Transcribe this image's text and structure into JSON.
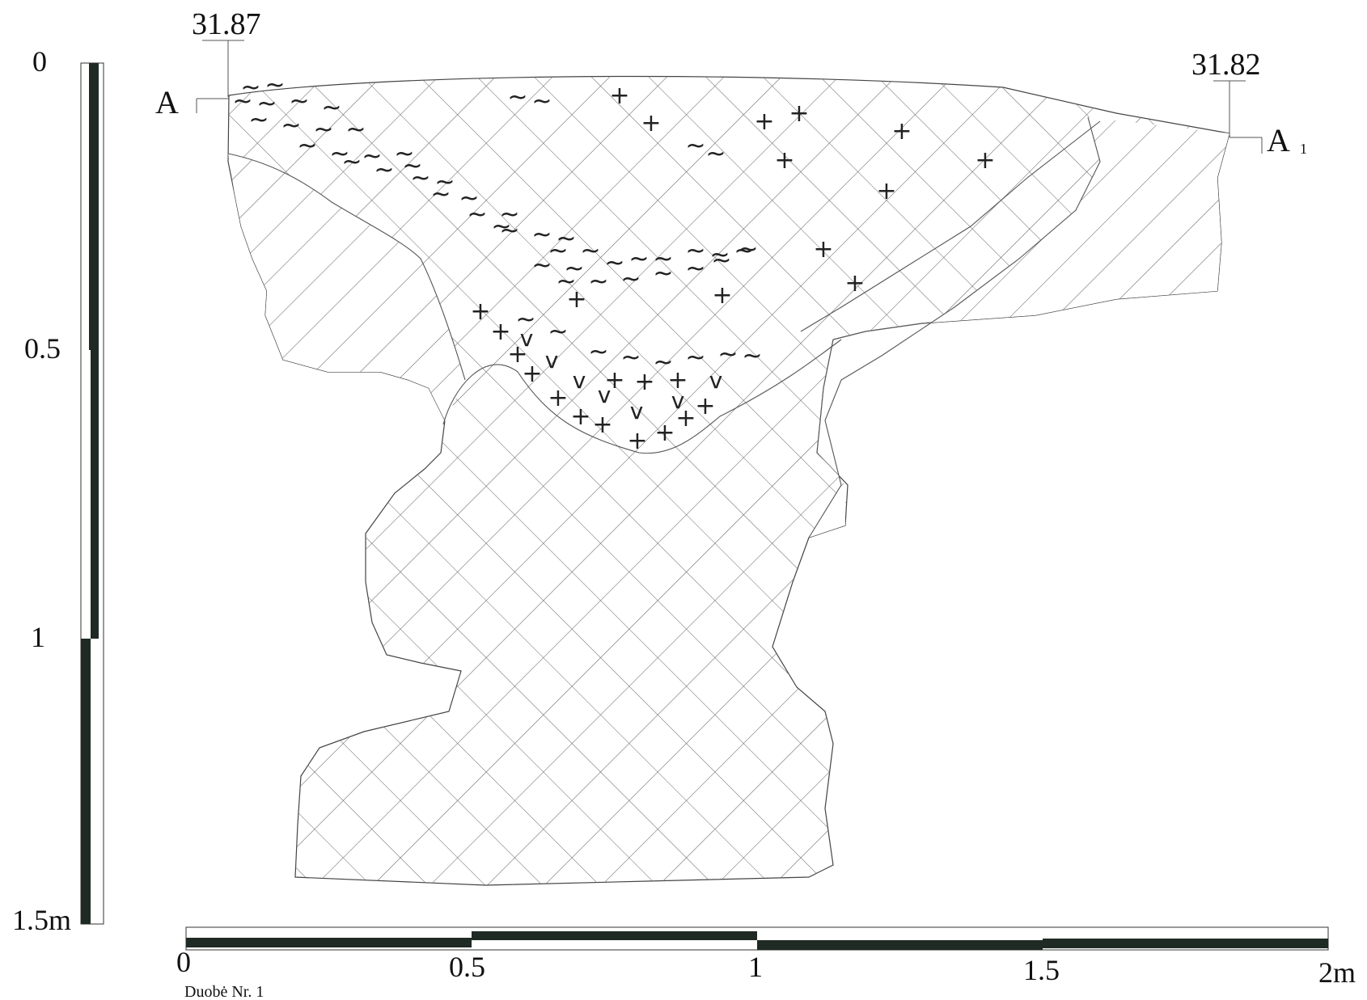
{
  "elevations": {
    "left": "31.87",
    "right": "31.82"
  },
  "section_labels": {
    "start": "A",
    "end": "A",
    "end_subscript": "1"
  },
  "vertical_scale": {
    "labels": [
      "0",
      "0.5",
      "1",
      "1.5m"
    ]
  },
  "horizontal_scale": {
    "labels": [
      "0",
      "0.5",
      "1",
      "1.5",
      "2m"
    ]
  },
  "caption": "Duobė Nr. 1",
  "legend_symbols": {
    "plus": "+",
    "wave": "~",
    "check": "v"
  }
}
